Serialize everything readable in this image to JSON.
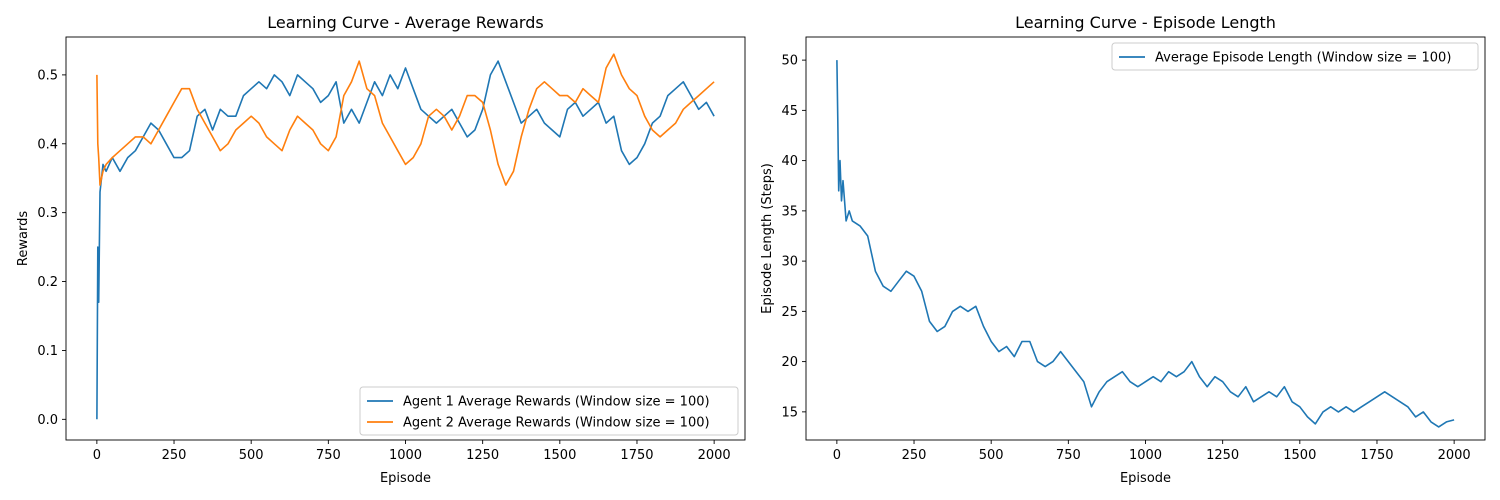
{
  "chart_data": [
    {
      "type": "line",
      "title": "Learning Curve - Average Rewards",
      "xlabel": "Episode",
      "ylabel": "Rewards",
      "xlim": [
        -100,
        2100
      ],
      "ylim": [
        -0.03,
        0.555
      ],
      "xticks": [
        0,
        250,
        500,
        750,
        1000,
        1250,
        1500,
        1750,
        2000
      ],
      "yticks": [
        0.0,
        0.1,
        0.2,
        0.3,
        0.4,
        0.5
      ],
      "ytick_labels": [
        "0.0",
        "0.1",
        "0.2",
        "0.3",
        "0.4",
        "0.5"
      ],
      "grid": false,
      "legend_position": "lower-right",
      "x": [
        0,
        3,
        6,
        10,
        20,
        30,
        50,
        75,
        100,
        125,
        150,
        175,
        200,
        225,
        250,
        275,
        300,
        325,
        350,
        375,
        400,
        425,
        450,
        475,
        500,
        525,
        550,
        575,
        600,
        625,
        650,
        675,
        700,
        725,
        750,
        775,
        800,
        825,
        850,
        875,
        900,
        925,
        950,
        975,
        1000,
        1025,
        1050,
        1075,
        1100,
        1125,
        1150,
        1175,
        1200,
        1225,
        1250,
        1275,
        1300,
        1325,
        1350,
        1375,
        1400,
        1425,
        1450,
        1475,
        1500,
        1525,
        1550,
        1575,
        1600,
        1625,
        1650,
        1675,
        1700,
        1725,
        1750,
        1775,
        1800,
        1825,
        1850,
        1875,
        1900,
        1925,
        1950,
        1975,
        2000
      ],
      "series": [
        {
          "name": "Agent 1 Average Rewards (Window size = 100)",
          "color": "#1f77b4",
          "values": [
            0.0,
            0.25,
            0.17,
            0.33,
            0.37,
            0.36,
            0.38,
            0.36,
            0.38,
            0.39,
            0.41,
            0.43,
            0.42,
            0.4,
            0.38,
            0.38,
            0.39,
            0.44,
            0.45,
            0.42,
            0.45,
            0.44,
            0.44,
            0.47,
            0.48,
            0.49,
            0.48,
            0.5,
            0.49,
            0.47,
            0.5,
            0.49,
            0.48,
            0.46,
            0.47,
            0.49,
            0.43,
            0.45,
            0.43,
            0.46,
            0.49,
            0.47,
            0.5,
            0.48,
            0.51,
            0.48,
            0.45,
            0.44,
            0.43,
            0.44,
            0.45,
            0.43,
            0.41,
            0.42,
            0.45,
            0.5,
            0.52,
            0.49,
            0.46,
            0.43,
            0.44,
            0.45,
            0.43,
            0.42,
            0.41,
            0.45,
            0.46,
            0.44,
            0.45,
            0.46,
            0.43,
            0.44,
            0.39,
            0.37,
            0.38,
            0.4,
            0.43,
            0.44,
            0.47,
            0.48,
            0.49,
            0.47,
            0.45,
            0.46,
            0.44
          ]
        },
        {
          "name": "Agent 2 Average Rewards (Window size = 100)",
          "color": "#ff7f0e",
          "values": [
            0.5,
            0.4,
            0.38,
            0.34,
            0.36,
            0.37,
            0.38,
            0.39,
            0.4,
            0.41,
            0.41,
            0.4,
            0.42,
            0.44,
            0.46,
            0.48,
            0.48,
            0.45,
            0.43,
            0.41,
            0.39,
            0.4,
            0.42,
            0.43,
            0.44,
            0.43,
            0.41,
            0.4,
            0.39,
            0.42,
            0.44,
            0.43,
            0.42,
            0.4,
            0.39,
            0.41,
            0.47,
            0.49,
            0.52,
            0.48,
            0.47,
            0.43,
            0.41,
            0.39,
            0.37,
            0.38,
            0.4,
            0.44,
            0.45,
            0.44,
            0.42,
            0.44,
            0.47,
            0.47,
            0.46,
            0.42,
            0.37,
            0.34,
            0.36,
            0.41,
            0.45,
            0.48,
            0.49,
            0.48,
            0.47,
            0.47,
            0.46,
            0.48,
            0.47,
            0.46,
            0.51,
            0.53,
            0.5,
            0.48,
            0.47,
            0.44,
            0.42,
            0.41,
            0.42,
            0.43,
            0.45,
            0.46,
            0.47,
            0.48,
            0.49
          ]
        }
      ]
    },
    {
      "type": "line",
      "title": "Learning Curve - Episode Length",
      "xlabel": "Episode",
      "ylabel": "Episode Length (Steps)",
      "xlim": [
        -100,
        2100
      ],
      "ylim": [
        12.2,
        52.3
      ],
      "xticks": [
        0,
        250,
        500,
        750,
        1000,
        1250,
        1500,
        1750,
        2000
      ],
      "yticks": [
        15,
        20,
        25,
        30,
        35,
        40,
        45,
        50
      ],
      "ytick_labels": [
        "15",
        "20",
        "25",
        "30",
        "35",
        "40",
        "45",
        "50"
      ],
      "grid": false,
      "legend_position": "upper-right",
      "x": [
        0,
        3,
        6,
        10,
        15,
        20,
        30,
        40,
        50,
        75,
        100,
        125,
        150,
        175,
        200,
        225,
        250,
        275,
        300,
        325,
        350,
        375,
        400,
        425,
        450,
        475,
        500,
        525,
        550,
        575,
        600,
        625,
        650,
        675,
        700,
        725,
        750,
        775,
        800,
        825,
        850,
        875,
        900,
        925,
        950,
        975,
        1000,
        1025,
        1050,
        1075,
        1100,
        1125,
        1150,
        1175,
        1200,
        1225,
        1250,
        1275,
        1300,
        1325,
        1350,
        1375,
        1400,
        1425,
        1450,
        1475,
        1500,
        1525,
        1550,
        1575,
        1600,
        1625,
        1650,
        1675,
        1700,
        1725,
        1750,
        1775,
        1800,
        1825,
        1850,
        1875,
        1900,
        1925,
        1950,
        1975,
        2000
      ],
      "series": [
        {
          "name": "Average Episode Length (Window size = 100)",
          "color": "#1f77b4",
          "values": [
            50.0,
            44.0,
            37.0,
            40.0,
            36.0,
            38.0,
            34.0,
            35.0,
            34.0,
            33.5,
            32.5,
            29.0,
            27.5,
            27.0,
            28.0,
            29.0,
            28.5,
            27.0,
            24.0,
            23.0,
            23.5,
            25.0,
            25.5,
            25.0,
            25.5,
            23.5,
            22.0,
            21.0,
            21.5,
            20.5,
            22.0,
            22.0,
            20.0,
            19.5,
            20.0,
            21.0,
            20.0,
            19.0,
            18.0,
            15.5,
            17.0,
            18.0,
            18.5,
            19.0,
            18.0,
            17.5,
            18.0,
            18.5,
            18.0,
            19.0,
            18.5,
            19.0,
            20.0,
            18.5,
            17.5,
            18.5,
            18.0,
            17.0,
            16.5,
            17.5,
            16.0,
            16.5,
            17.0,
            16.5,
            17.5,
            16.0,
            15.5,
            14.5,
            13.8,
            15.0,
            15.5,
            15.0,
            15.5,
            15.0,
            15.5,
            16.0,
            16.5,
            17.0,
            16.5,
            16.0,
            15.5,
            14.5,
            15.0,
            14.0,
            13.5,
            14.0,
            14.2
          ]
        }
      ]
    }
  ]
}
